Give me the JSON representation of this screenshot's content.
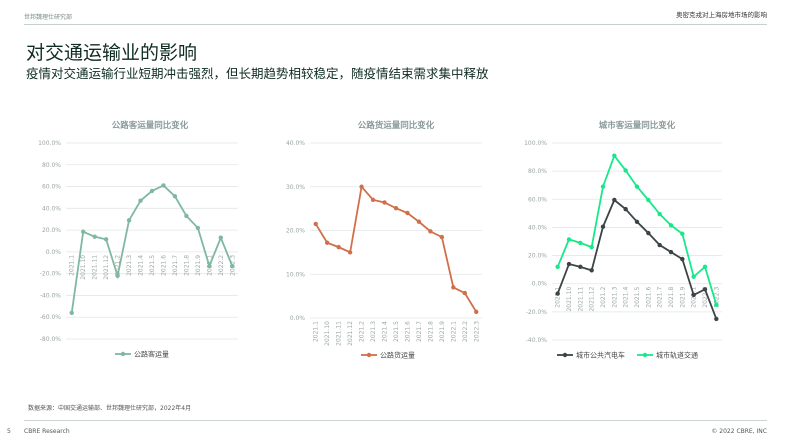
{
  "header": {
    "org": "世邦魏理仕研究部",
    "report": "奥密克戎对上海房地市场的影响"
  },
  "title": "对交通运输业的影响",
  "subtitle": "疫情对交通运输行业短期冲击强烈，但长期趋势相较稳定，随疫情结束需求集中释放",
  "footer": {
    "source": "数据来源：中国交通运输部、世邦魏理仕研究部，2022年4月",
    "page": "5",
    "brand": "CBRE Research",
    "copyright": "© 2022 CBRE, INC"
  },
  "chart_data": [
    {
      "type": "line",
      "title": "公路客运量同比变化",
      "ylim": [
        -80,
        100
      ],
      "yticks": [
        "-80.0%",
        "-60.0%",
        "-40.0%",
        "-20.0%",
        "0.0%",
        "20.0%",
        "40.0%",
        "60.0%",
        "80.0%",
        "100.0%"
      ],
      "grid": true,
      "legend": "bottom",
      "categories": [
        "2021.1",
        "2021.10",
        "2021.11",
        "2021.12",
        "2021.2",
        "2021.3",
        "2021.4",
        "2021.5",
        "2021.6",
        "2021.7",
        "2021.8",
        "2021.9",
        "2022.1",
        "2022.2",
        "2022.3"
      ],
      "series": [
        {
          "name": "公路客运量",
          "color": "#7fb8a0",
          "values": [
            -56,
            18.5,
            14,
            11.5,
            -22,
            29,
            47,
            56,
            61,
            51,
            33,
            22,
            -13,
            13,
            -13
          ]
        }
      ]
    },
    {
      "type": "line",
      "title": "公路货运量同比变化",
      "ylim": [
        0,
        40
      ],
      "yticks": [
        "0.0%",
        "10.0%",
        "20.0%",
        "30.0%",
        "40.0%"
      ],
      "grid": true,
      "legend": "bottom",
      "categories": [
        "2021.1",
        "2021.10",
        "2021.11",
        "2021.12",
        "2021.2",
        "2021.3",
        "2021.4",
        "2021.5",
        "2021.6",
        "2021.7",
        "2021.8",
        "2021.9",
        "2022.1",
        "2022.2",
        "2022.3"
      ],
      "series": [
        {
          "name": "公路货运量",
          "color": "#d0704a",
          "values": [
            21.5,
            17.2,
            16.2,
            15,
            30,
            27,
            26.4,
            25.1,
            24,
            22,
            19.8,
            18.5,
            7,
            5.7,
            1.4
          ]
        }
      ]
    },
    {
      "type": "line",
      "title": "城市客运量同比变化",
      "ylim": [
        -40,
        100
      ],
      "yticks": [
        "-40.0%",
        "-20.0%",
        "0.0%",
        "20.0%",
        "40.0%",
        "60.0%",
        "80.0%",
        "100.0%"
      ],
      "grid": true,
      "legend": "bottom",
      "categories": [
        "2021.1",
        "2021.10",
        "2021.11",
        "2021.12",
        "2021.2",
        "2021.3",
        "2021.4",
        "2021.5",
        "2021.6",
        "2021.7",
        "2021.8",
        "2021.9",
        "2022.1",
        "2022.2",
        "2022.3"
      ],
      "series": [
        {
          "name": "城市公共汽电车",
          "color": "#3c4446",
          "values": [
            -7,
            14,
            12,
            9.5,
            40.5,
            59.5,
            53,
            44,
            36,
            27.5,
            22.5,
            17.5,
            -8,
            -4,
            -25
          ]
        },
        {
          "name": "城市轨道交通",
          "color": "#17e88a",
          "values": [
            12,
            31.5,
            29,
            26,
            69,
            91,
            80.5,
            69,
            59.5,
            49.5,
            41.5,
            35.5,
            5,
            12,
            -15
          ]
        }
      ]
    }
  ]
}
